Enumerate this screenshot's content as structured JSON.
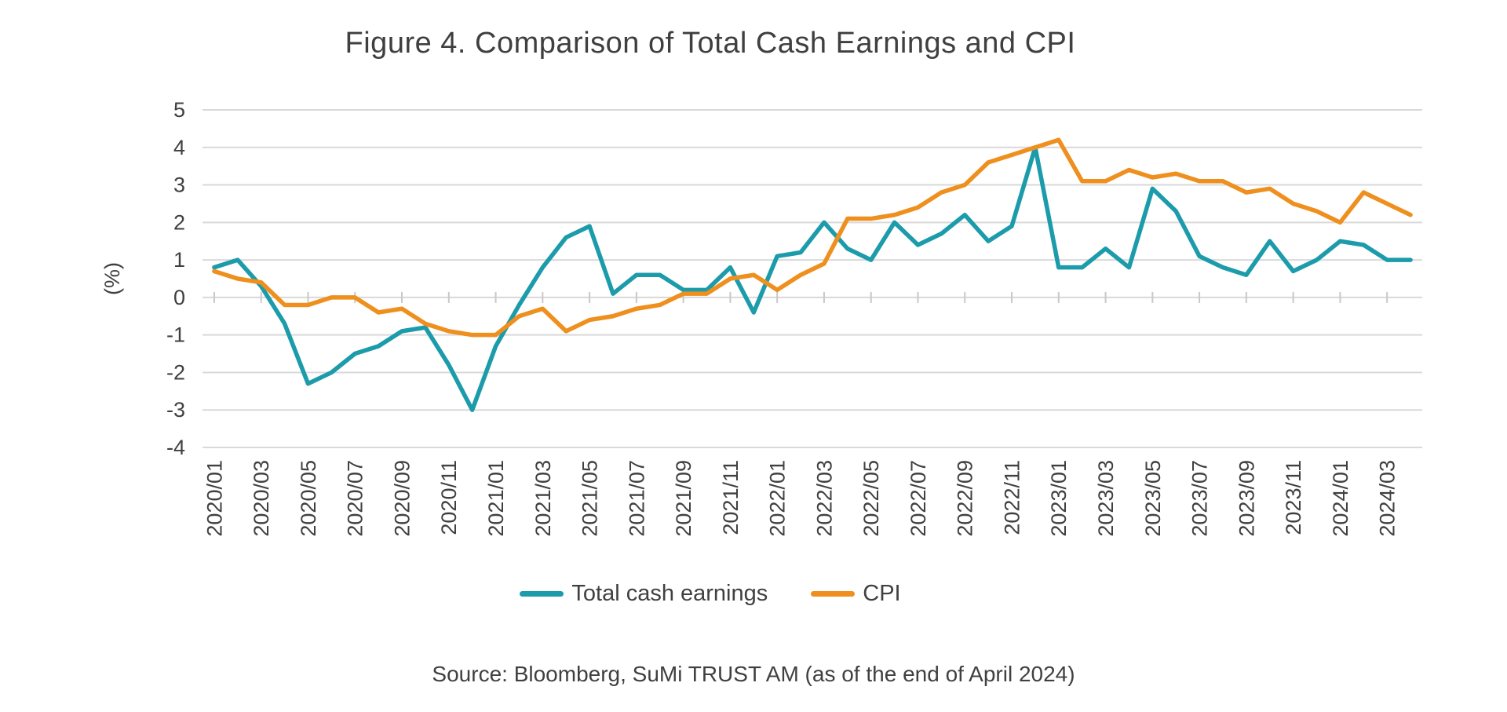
{
  "title": "Figure 4. Comparison of Total Cash Earnings and CPI",
  "source": "Source: Bloomberg, SuMi TRUST AM (as of the end of April 2024)",
  "chart_data": {
    "type": "line",
    "title": "Figure 4. Comparison of Total Cash Earnings and CPI",
    "xlabel": "",
    "ylabel": "(%)",
    "ylim": [
      -4,
      5
    ],
    "ytick_step": 1,
    "xtick_every": 2,
    "grid": true,
    "legend_position": "bottom",
    "x": [
      "2020/01",
      "2020/02",
      "2020/03",
      "2020/04",
      "2020/05",
      "2020/06",
      "2020/07",
      "2020/08",
      "2020/09",
      "2020/10",
      "2020/11",
      "2020/12",
      "2021/01",
      "2021/02",
      "2021/03",
      "2021/04",
      "2021/05",
      "2021/06",
      "2021/07",
      "2021/08",
      "2021/09",
      "2021/10",
      "2021/11",
      "2021/12",
      "2022/01",
      "2022/02",
      "2022/03",
      "2022/04",
      "2022/05",
      "2022/06",
      "2022/07",
      "2022/08",
      "2022/09",
      "2022/10",
      "2022/11",
      "2022/12",
      "2023/01",
      "2023/02",
      "2023/03",
      "2023/04",
      "2023/05",
      "2023/06",
      "2023/07",
      "2023/08",
      "2023/09",
      "2023/10",
      "2023/11",
      "2023/12",
      "2024/01",
      "2024/02",
      "2024/03",
      "2024/04"
    ],
    "series": [
      {
        "name": "Total cash earnings",
        "color": "#1c9bab",
        "values": [
          0.8,
          1.0,
          0.3,
          -0.7,
          -2.3,
          -2.0,
          -1.5,
          -1.3,
          -0.9,
          -0.8,
          -1.8,
          -3.0,
          -1.3,
          -0.2,
          0.8,
          1.6,
          1.9,
          0.1,
          0.6,
          0.6,
          0.2,
          0.2,
          0.8,
          -0.4,
          1.1,
          1.2,
          2.0,
          1.3,
          1.0,
          2.0,
          1.4,
          1.7,
          2.2,
          1.5,
          1.9,
          4.0,
          0.8,
          0.8,
          1.3,
          0.8,
          2.9,
          2.3,
          1.1,
          0.8,
          0.6,
          1.5,
          0.7,
          1.0,
          1.5,
          1.4,
          1.0,
          1.0
        ]
      },
      {
        "name": "CPI",
        "color": "#ee8f1e",
        "values": [
          0.7,
          0.5,
          0.4,
          -0.2,
          -0.2,
          0.0,
          0.0,
          -0.4,
          -0.3,
          -0.7,
          -0.9,
          -1.0,
          -1.0,
          -0.5,
          -0.3,
          -0.9,
          -0.6,
          -0.5,
          -0.3,
          -0.2,
          0.1,
          0.1,
          0.5,
          0.6,
          0.2,
          0.6,
          0.9,
          2.1,
          2.1,
          2.2,
          2.4,
          2.8,
          3.0,
          3.6,
          3.8,
          4.0,
          4.2,
          3.1,
          3.1,
          3.4,
          3.2,
          3.3,
          3.1,
          3.1,
          2.8,
          2.9,
          2.5,
          2.3,
          2.0,
          2.8,
          2.5,
          2.2
        ]
      }
    ]
  }
}
